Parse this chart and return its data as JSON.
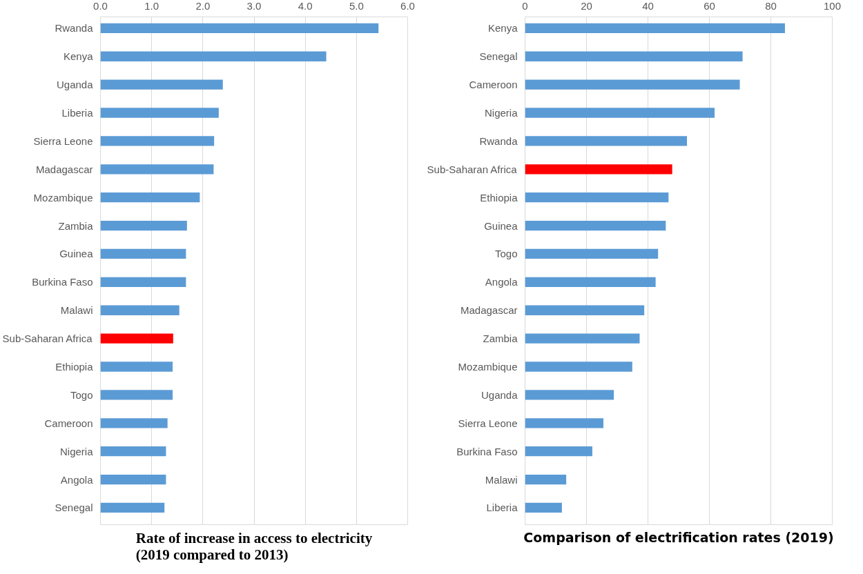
{
  "chart_data": [
    {
      "type": "bar",
      "orientation": "horizontal",
      "title": "Rate of increase in access to electricity\n(2019 compared to 2013)",
      "categories": [
        "Rwanda",
        "Kenya",
        "Uganda",
        "Liberia",
        "Sierra Leone",
        "Madagascar",
        "Mozambique",
        "Zambia",
        "Guinea",
        "Burkina Faso",
        "Malawi",
        "Sub-Saharan Africa",
        "Ethiopia",
        "Togo",
        "Cameroon",
        "Nigeria",
        "Angola",
        "Senegal"
      ],
      "values": [
        5.43,
        4.41,
        2.39,
        2.31,
        2.22,
        2.21,
        1.94,
        1.69,
        1.67,
        1.67,
        1.54,
        1.42,
        1.41,
        1.41,
        1.31,
        1.28,
        1.28,
        1.25
      ],
      "colors": [
        "#5b9bd5",
        "#5b9bd5",
        "#5b9bd5",
        "#5b9bd5",
        "#5b9bd5",
        "#5b9bd5",
        "#5b9bd5",
        "#5b9bd5",
        "#5b9bd5",
        "#5b9bd5",
        "#5b9bd5",
        "#ff0000",
        "#5b9bd5",
        "#5b9bd5",
        "#5b9bd5",
        "#5b9bd5",
        "#5b9bd5",
        "#5b9bd5"
      ],
      "xlim": [
        0,
        6.0
      ],
      "xticks": [
        {
          "value": 0,
          "label": "0.0"
        },
        {
          "value": 1,
          "label": "1.0"
        },
        {
          "value": 2,
          "label": "2.0"
        },
        {
          "value": 3,
          "label": "3.0"
        },
        {
          "value": 4,
          "label": "4.0"
        },
        {
          "value": 5,
          "label": "5.0"
        },
        {
          "value": 6,
          "label": "6.0"
        }
      ],
      "grid": "x"
    },
    {
      "type": "bar",
      "orientation": "horizontal",
      "title": "Comparison of electrification rates (2019)",
      "categories": [
        "Kenya",
        "Senegal",
        "Cameroon",
        "Nigeria",
        "Rwanda",
        "Sub-Saharan Africa",
        "Ethiopia",
        "Guinea",
        "Togo",
        "Angola",
        "Madagascar",
        "Zambia",
        "Mozambique",
        "Uganda",
        "Sierra Leone",
        "Burkina Faso",
        "Malawi",
        "Liberia"
      ],
      "values": [
        84.6,
        70.8,
        69.9,
        61.7,
        52.7,
        47.9,
        46.7,
        45.8,
        43.3,
        42.5,
        38.8,
        37.3,
        34.9,
        28.9,
        25.5,
        21.9,
        13.4,
        12.0
      ],
      "colors": [
        "#5b9bd5",
        "#5b9bd5",
        "#5b9bd5",
        "#5b9bd5",
        "#5b9bd5",
        "#ff0000",
        "#5b9bd5",
        "#5b9bd5",
        "#5b9bd5",
        "#5b9bd5",
        "#5b9bd5",
        "#5b9bd5",
        "#5b9bd5",
        "#5b9bd5",
        "#5b9bd5",
        "#5b9bd5",
        "#5b9bd5",
        "#5b9bd5"
      ],
      "xlim": [
        0,
        100
      ],
      "xticks": [
        0,
        20,
        40,
        60,
        80,
        100
      ],
      "grid": "x"
    }
  ]
}
